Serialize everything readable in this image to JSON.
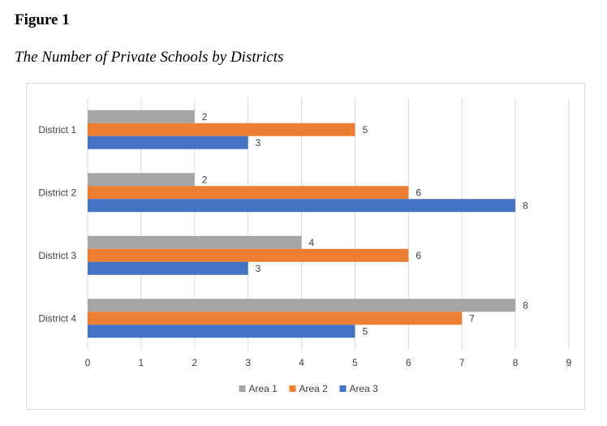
{
  "figure_label": "Figure 1",
  "figure_title": "The Number of Private Schools by Districts",
  "chart_data": {
    "type": "bar",
    "orientation": "horizontal",
    "title": "The Number of Private Schools by Districts",
    "categories": [
      "District 1",
      "District 2",
      "District 3",
      "District 4"
    ],
    "series": [
      {
        "name": "Area 1",
        "color": "#a5a5a5",
        "values": [
          2,
          2,
          4,
          8
        ]
      },
      {
        "name": "Area 2",
        "color": "#ed7d31",
        "values": [
          5,
          6,
          6,
          7
        ]
      },
      {
        "name": "Area 3",
        "color": "#4472c4",
        "values": [
          3,
          8,
          3,
          5
        ]
      }
    ],
    "xlim": [
      0,
      9
    ],
    "xticks": [
      0,
      1,
      2,
      3,
      4,
      5,
      6,
      7,
      8,
      9
    ],
    "xlabel": "",
    "ylabel": "",
    "grid": "vertical",
    "legend": "bottom",
    "data_labels": true,
    "gridline_color": "#d9d9d9"
  }
}
